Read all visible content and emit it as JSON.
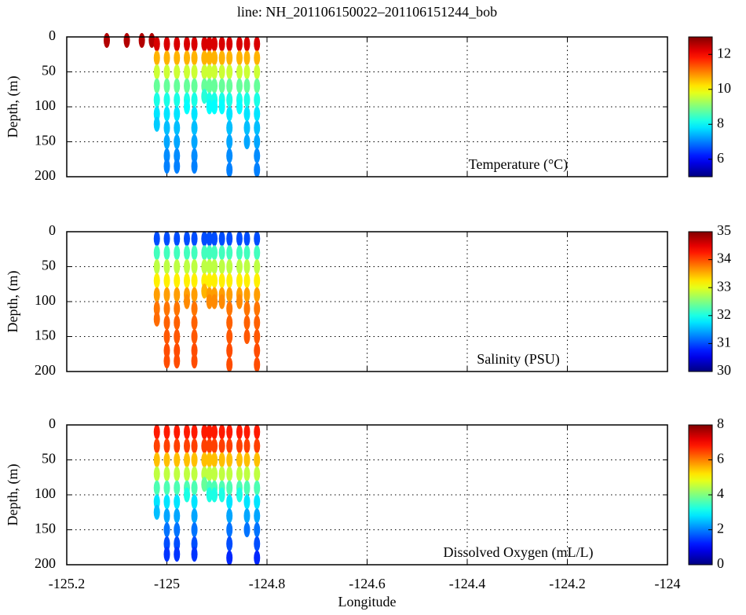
{
  "chart_data": [
    {
      "type": "scatter",
      "title": "line: NH_201106150022–201106151244_bob",
      "annotation": "Temperature (°C)",
      "ylabel": "Depth, (m)",
      "x": [
        -125.12,
        -125.08,
        -125.05,
        -125.03,
        -125.02,
        -125.02,
        -125.02,
        -125.02,
        -125.02,
        -125.02,
        -125.02,
        -125.0,
        -125.0,
        -125.0,
        -125.0,
        -125.0,
        -125.0,
        -125.0,
        -125.0,
        -125.0,
        -125.0,
        -124.98,
        -124.98,
        -124.98,
        -124.98,
        -124.98,
        -124.98,
        -124.98,
        -124.98,
        -124.98,
        -124.98,
        -124.96,
        -124.96,
        -124.96,
        -124.96,
        -124.96,
        -124.96,
        -124.945,
        -124.945,
        -124.945,
        -124.945,
        -124.945,
        -124.945,
        -124.945,
        -124.945,
        -124.945,
        -124.945,
        -124.925,
        -124.925,
        -124.925,
        -124.925,
        -124.925,
        -124.915,
        -124.915,
        -124.915,
        -124.915,
        -124.915,
        -124.915,
        -124.905,
        -124.905,
        -124.905,
        -124.905,
        -124.905,
        -124.905,
        -124.89,
        -124.89,
        -124.89,
        -124.89,
        -124.89,
        -124.89,
        -124.875,
        -124.875,
        -124.875,
        -124.875,
        -124.875,
        -124.875,
        -124.875,
        -124.875,
        -124.875,
        -124.875,
        -124.855,
        -124.855,
        -124.855,
        -124.855,
        -124.855,
        -124.855,
        -124.84,
        -124.84,
        -124.84,
        -124.84,
        -124.84,
        -124.84,
        -124.84,
        -124.84,
        -124.82,
        -124.82,
        -124.82,
        -124.82,
        -124.82,
        -124.82,
        -124.82,
        -124.82,
        -124.82,
        -124.82
      ],
      "y": [
        5,
        5,
        5,
        5,
        10,
        30,
        50,
        70,
        90,
        110,
        125,
        10,
        30,
        50,
        70,
        90,
        110,
        130,
        150,
        170,
        185,
        10,
        30,
        50,
        70,
        90,
        110,
        130,
        150,
        170,
        185,
        10,
        30,
        50,
        70,
        90,
        100,
        10,
        30,
        50,
        70,
        90,
        110,
        130,
        150,
        170,
        185,
        10,
        30,
        50,
        70,
        85,
        10,
        30,
        50,
        70,
        90,
        100,
        10,
        30,
        50,
        70,
        90,
        100,
        10,
        30,
        50,
        70,
        90,
        100,
        10,
        30,
        50,
        70,
        90,
        110,
        130,
        150,
        170,
        190,
        10,
        30,
        50,
        70,
        90,
        100,
        10,
        30,
        50,
        70,
        90,
        110,
        130,
        150,
        10,
        30,
        50,
        70,
        90,
        110,
        130,
        150,
        170,
        190
      ],
      "values": [
        12.6,
        12.6,
        12.6,
        12.6,
        12.3,
        10.6,
        9.6,
        8.8,
        8.2,
        7.8,
        7.6,
        12.3,
        10.6,
        9.6,
        8.8,
        8.2,
        7.8,
        7.5,
        7.3,
        7.1,
        7.0,
        12.3,
        10.6,
        9.6,
        8.8,
        8.2,
        7.8,
        7.5,
        7.3,
        7.1,
        7.0,
        12.3,
        10.6,
        9.6,
        8.8,
        8.2,
        8.0,
        12.3,
        10.6,
        9.6,
        8.8,
        8.2,
        7.8,
        7.5,
        7.3,
        7.1,
        7.0,
        12.3,
        10.6,
        9.6,
        8.8,
        8.3,
        12.3,
        10.6,
        9.6,
        8.8,
        8.2,
        8.0,
        12.3,
        10.6,
        9.6,
        8.8,
        8.2,
        8.0,
        12.3,
        10.6,
        9.6,
        8.8,
        8.2,
        8.0,
        12.3,
        10.6,
        9.6,
        8.8,
        8.2,
        7.8,
        7.5,
        7.3,
        7.1,
        7.0,
        12.3,
        10.6,
        9.6,
        8.8,
        8.2,
        8.0,
        12.3,
        10.6,
        9.6,
        8.8,
        8.2,
        7.8,
        7.5,
        7.3,
        12.3,
        10.6,
        9.6,
        8.8,
        8.2,
        7.8,
        7.5,
        7.3,
        7.1,
        7.0
      ],
      "xlim": [
        -125.2,
        -124
      ],
      "xticks": [
        -125.2,
        -125,
        -124.8,
        -124.6,
        -124.4,
        -124.2,
        -124
      ],
      "ylim": [
        200,
        0
      ],
      "yticks": [
        0,
        50,
        100,
        150,
        200
      ],
      "grid": true,
      "colormap": "jet",
      "clim": [
        5,
        13
      ],
      "cticks": [
        6,
        8,
        10,
        12
      ]
    },
    {
      "type": "scatter",
      "annotation": "Salinity (PSU)",
      "ylabel": "Depth, (m)",
      "x": [
        -125.02,
        -125.02,
        -125.02,
        -125.02,
        -125.02,
        -125.02,
        -125.02,
        -125.0,
        -125.0,
        -125.0,
        -125.0,
        -125.0,
        -125.0,
        -125.0,
        -125.0,
        -125.0,
        -125.0,
        -124.98,
        -124.98,
        -124.98,
        -124.98,
        -124.98,
        -124.98,
        -124.98,
        -124.98,
        -124.98,
        -124.98,
        -124.96,
        -124.96,
        -124.96,
        -124.96,
        -124.96,
        -124.96,
        -124.945,
        -124.945,
        -124.945,
        -124.945,
        -124.945,
        -124.945,
        -124.945,
        -124.945,
        -124.945,
        -124.945,
        -124.925,
        -124.925,
        -124.925,
        -124.925,
        -124.925,
        -124.915,
        -124.915,
        -124.915,
        -124.915,
        -124.915,
        -124.915,
        -124.905,
        -124.905,
        -124.905,
        -124.905,
        -124.905,
        -124.905,
        -124.89,
        -124.89,
        -124.89,
        -124.89,
        -124.89,
        -124.89,
        -124.875,
        -124.875,
        -124.875,
        -124.875,
        -124.875,
        -124.875,
        -124.875,
        -124.875,
        -124.875,
        -124.875,
        -124.855,
        -124.855,
        -124.855,
        -124.855,
        -124.855,
        -124.855,
        -124.84,
        -124.84,
        -124.84,
        -124.84,
        -124.84,
        -124.84,
        -124.84,
        -124.84,
        -124.82,
        -124.82,
        -124.82,
        -124.82,
        -124.82,
        -124.82,
        -124.82,
        -124.82,
        -124.82,
        -124.82
      ],
      "y": [
        10,
        30,
        50,
        70,
        90,
        110,
        125,
        10,
        30,
        50,
        70,
        90,
        110,
        130,
        150,
        170,
        185,
        10,
        30,
        50,
        70,
        90,
        110,
        130,
        150,
        170,
        185,
        10,
        30,
        50,
        70,
        90,
        100,
        10,
        30,
        50,
        70,
        90,
        110,
        130,
        150,
        170,
        185,
        10,
        30,
        50,
        70,
        85,
        10,
        30,
        50,
        70,
        90,
        100,
        10,
        30,
        50,
        70,
        90,
        100,
        10,
        30,
        50,
        70,
        90,
        100,
        10,
        30,
        50,
        70,
        90,
        110,
        130,
        150,
        170,
        190,
        10,
        30,
        50,
        70,
        90,
        100,
        10,
        30,
        50,
        70,
        90,
        110,
        130,
        150,
        10,
        30,
        50,
        70,
        90,
        110,
        130,
        150,
        170,
        190
      ],
      "values": [
        31.0,
        32.2,
        32.8,
        33.2,
        33.6,
        33.8,
        33.85,
        31.0,
        32.2,
        32.8,
        33.2,
        33.6,
        33.8,
        33.9,
        33.95,
        34.0,
        34.0,
        31.0,
        32.2,
        32.8,
        33.2,
        33.6,
        33.8,
        33.9,
        33.95,
        34.0,
        34.0,
        31.0,
        32.2,
        32.8,
        33.2,
        33.6,
        33.7,
        31.0,
        32.2,
        32.8,
        33.2,
        33.6,
        33.8,
        33.9,
        33.95,
        34.0,
        34.0,
        31.0,
        32.2,
        32.8,
        33.2,
        33.5,
        31.0,
        32.2,
        32.8,
        33.2,
        33.6,
        33.7,
        31.0,
        32.2,
        32.8,
        33.2,
        33.6,
        33.7,
        31.0,
        32.2,
        32.8,
        33.2,
        33.6,
        33.7,
        31.0,
        32.2,
        32.8,
        33.2,
        33.6,
        33.8,
        33.9,
        33.95,
        34.0,
        34.0,
        31.0,
        32.2,
        32.8,
        33.2,
        33.6,
        33.7,
        31.0,
        32.2,
        32.8,
        33.2,
        33.6,
        33.8,
        33.9,
        33.95,
        31.0,
        32.2,
        32.8,
        33.2,
        33.6,
        33.8,
        33.9,
        33.95,
        34.0,
        34.0
      ],
      "xlim": [
        -125.2,
        -124
      ],
      "xticks": [
        -125.2,
        -125,
        -124.8,
        -124.6,
        -124.4,
        -124.2,
        -124
      ],
      "ylim": [
        200,
        0
      ],
      "yticks": [
        0,
        50,
        100,
        150,
        200
      ],
      "grid": true,
      "colormap": "jet",
      "clim": [
        30,
        35
      ],
      "cticks": [
        30,
        31,
        32,
        33,
        34,
        35
      ]
    },
    {
      "type": "scatter",
      "annotation": "Dissolved Oxygen (mL/L)",
      "ylabel": "Depth, (m)",
      "xlabel": "Longitude",
      "x": [
        -125.02,
        -125.02,
        -125.02,
        -125.02,
        -125.02,
        -125.02,
        -125.02,
        -125.0,
        -125.0,
        -125.0,
        -125.0,
        -125.0,
        -125.0,
        -125.0,
        -125.0,
        -125.0,
        -125.0,
        -124.98,
        -124.98,
        -124.98,
        -124.98,
        -124.98,
        -124.98,
        -124.98,
        -124.98,
        -124.98,
        -124.98,
        -124.96,
        -124.96,
        -124.96,
        -124.96,
        -124.96,
        -124.96,
        -124.945,
        -124.945,
        -124.945,
        -124.945,
        -124.945,
        -124.945,
        -124.945,
        -124.945,
        -124.945,
        -124.945,
        -124.925,
        -124.925,
        -124.925,
        -124.925,
        -124.925,
        -124.915,
        -124.915,
        -124.915,
        -124.915,
        -124.915,
        -124.915,
        -124.905,
        -124.905,
        -124.905,
        -124.905,
        -124.905,
        -124.905,
        -124.89,
        -124.89,
        -124.89,
        -124.89,
        -124.89,
        -124.89,
        -124.875,
        -124.875,
        -124.875,
        -124.875,
        -124.875,
        -124.875,
        -124.875,
        -124.875,
        -124.875,
        -124.875,
        -124.855,
        -124.855,
        -124.855,
        -124.855,
        -124.855,
        -124.855,
        -124.84,
        -124.84,
        -124.84,
        -124.84,
        -124.84,
        -124.84,
        -124.84,
        -124.84,
        -124.82,
        -124.82,
        -124.82,
        -124.82,
        -124.82,
        -124.82,
        -124.82,
        -124.82,
        -124.82,
        -124.82
      ],
      "y": [
        10,
        30,
        50,
        70,
        90,
        110,
        125,
        10,
        30,
        50,
        70,
        90,
        110,
        130,
        150,
        170,
        185,
        10,
        30,
        50,
        70,
        90,
        110,
        130,
        150,
        170,
        185,
        10,
        30,
        50,
        70,
        90,
        100,
        10,
        30,
        50,
        70,
        90,
        110,
        130,
        150,
        170,
        185,
        10,
        30,
        50,
        70,
        85,
        10,
        30,
        50,
        70,
        90,
        100,
        10,
        30,
        50,
        70,
        90,
        100,
        10,
        30,
        50,
        70,
        90,
        100,
        10,
        30,
        50,
        70,
        90,
        110,
        130,
        150,
        170,
        190,
        10,
        30,
        50,
        70,
        90,
        100,
        10,
        30,
        50,
        70,
        90,
        110,
        130,
        150,
        10,
        30,
        50,
        70,
        90,
        110,
        130,
        150,
        170,
        190
      ],
      "values": [
        6.8,
        6.5,
        5.5,
        4.5,
        3.6,
        2.8,
        2.5,
        6.8,
        6.5,
        5.5,
        4.5,
        3.6,
        2.8,
        2.3,
        1.9,
        1.6,
        1.4,
        6.8,
        6.5,
        5.5,
        4.5,
        3.6,
        2.8,
        2.3,
        1.9,
        1.6,
        1.4,
        6.8,
        6.5,
        5.5,
        4.5,
        3.6,
        3.2,
        6.8,
        6.5,
        5.5,
        4.5,
        3.6,
        2.8,
        2.3,
        1.9,
        1.6,
        1.4,
        6.8,
        6.5,
        5.5,
        4.5,
        3.8,
        6.8,
        6.5,
        5.5,
        4.5,
        3.6,
        3.2,
        6.8,
        6.5,
        5.5,
        4.5,
        3.6,
        3.2,
        6.8,
        6.5,
        5.5,
        4.5,
        3.6,
        3.2,
        6.8,
        6.5,
        5.5,
        4.5,
        3.6,
        2.8,
        2.3,
        1.9,
        1.6,
        1.3,
        6.8,
        6.5,
        5.5,
        4.5,
        3.6,
        3.2,
        6.8,
        6.5,
        5.5,
        4.5,
        3.6,
        2.8,
        2.3,
        1.9,
        6.8,
        6.5,
        5.5,
        4.5,
        3.6,
        2.8,
        2.3,
        1.9,
        1.6,
        1.3
      ],
      "xlim": [
        -125.2,
        -124
      ],
      "xticks": [
        -125.2,
        -125,
        -124.8,
        -124.6,
        -124.4,
        -124.2,
        -124
      ],
      "ylim": [
        200,
        0
      ],
      "yticks": [
        0,
        50,
        100,
        150,
        200
      ],
      "grid": true,
      "colormap": "jet",
      "clim": [
        0,
        8
      ],
      "cticks": [
        0,
        2,
        4,
        6,
        8
      ]
    }
  ]
}
